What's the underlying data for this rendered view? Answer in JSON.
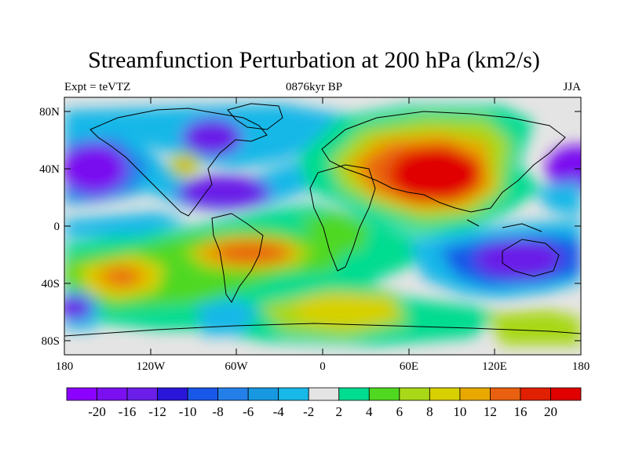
{
  "title": "Streamfunction Perturbation at 200 hPa (km2/s)",
  "left_label": "Expt = teVTZ",
  "center_label": "0876kyr BP",
  "right_label": "JJA",
  "lat_ticks": [
    "80N",
    "40N",
    "0",
    "40S",
    "80S"
  ],
  "lon_ticks": [
    "180",
    "120W",
    "60W",
    "0",
    "60E",
    "120E",
    "180"
  ],
  "colorbar": {
    "labels": [
      "-20",
      "-16",
      "-12",
      "-10",
      "-8",
      "-6",
      "-4",
      "-2",
      "2",
      "4",
      "6",
      "8",
      "10",
      "12",
      "16",
      "20"
    ],
    "colors": [
      "#8b00ff",
      "#7a10f0",
      "#6a1ee8",
      "#2a16d8",
      "#1858e8",
      "#2480e8",
      "#1898e0",
      "#18b8e8",
      "#e4e4e4",
      "#00dc90",
      "#50d820",
      "#a8d818",
      "#d8d000",
      "#e8a800",
      "#e86010",
      "#e02000",
      "#e00000"
    ]
  },
  "map_colors": {
    "neutral": "#e4e4e4",
    "land_outline": "#000000"
  }
}
